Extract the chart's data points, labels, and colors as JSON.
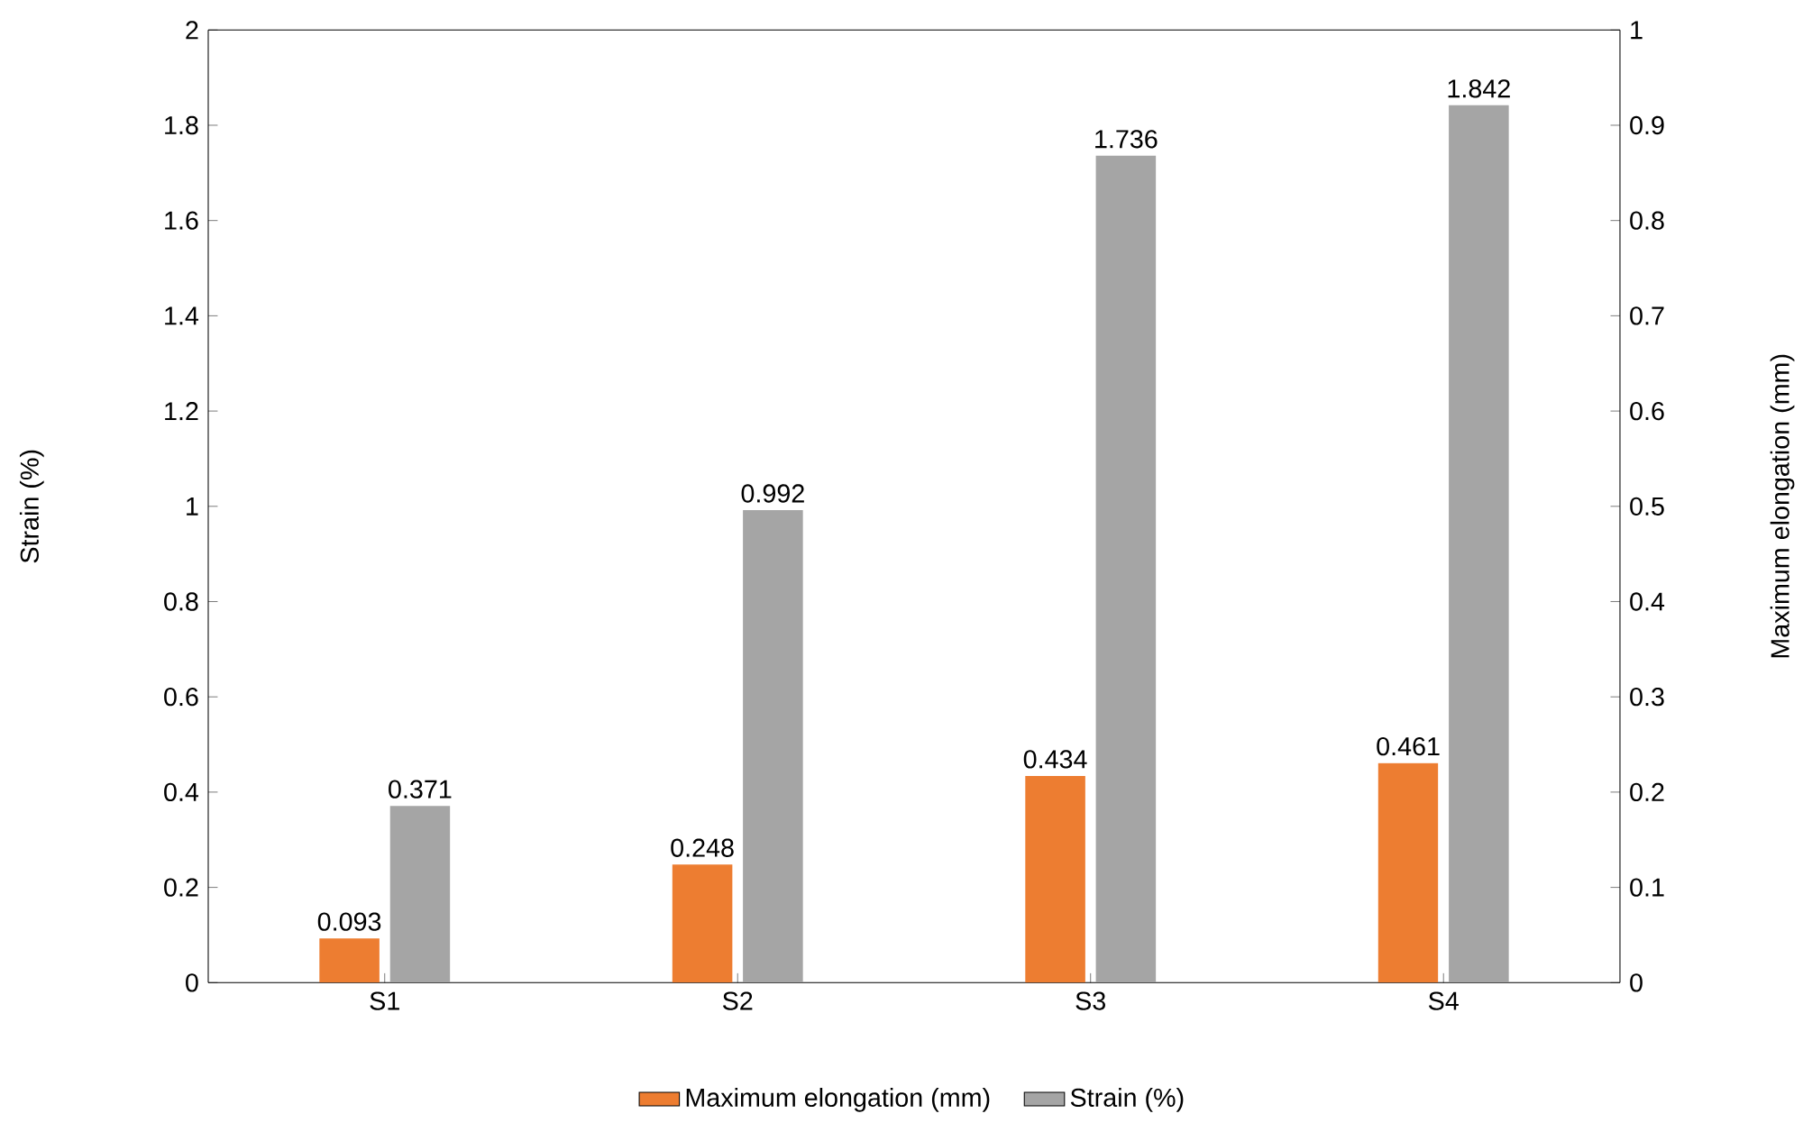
{
  "chart_data": {
    "type": "bar",
    "categories": [
      "S1",
      "S2",
      "S3",
      "S4"
    ],
    "series": [
      {
        "name": "Maximum elongation (mm)",
        "color": "#ed7d31",
        "values": [
          0.093,
          0.248,
          0.434,
          0.461
        ]
      },
      {
        "name": "Strain (%)",
        "color": "#a5a5a5",
        "values": [
          0.371,
          0.992,
          1.736,
          1.842
        ]
      }
    ],
    "ylabel": "Strain (%)",
    "y2label": "Maximum elongation (mm)",
    "ylim": [
      0,
      2
    ],
    "yticks": [
      0,
      0.2,
      0.4,
      0.6,
      0.8,
      1,
      1.2,
      1.4,
      1.6,
      1.8,
      2
    ],
    "y2lim": [
      0,
      1
    ],
    "y2ticks": [
      0,
      0.1,
      0.2,
      0.3,
      0.4,
      0.5,
      0.6,
      0.7,
      0.8,
      0.9,
      1
    ],
    "data_labels": true,
    "legend": "bottom",
    "grid": false
  }
}
